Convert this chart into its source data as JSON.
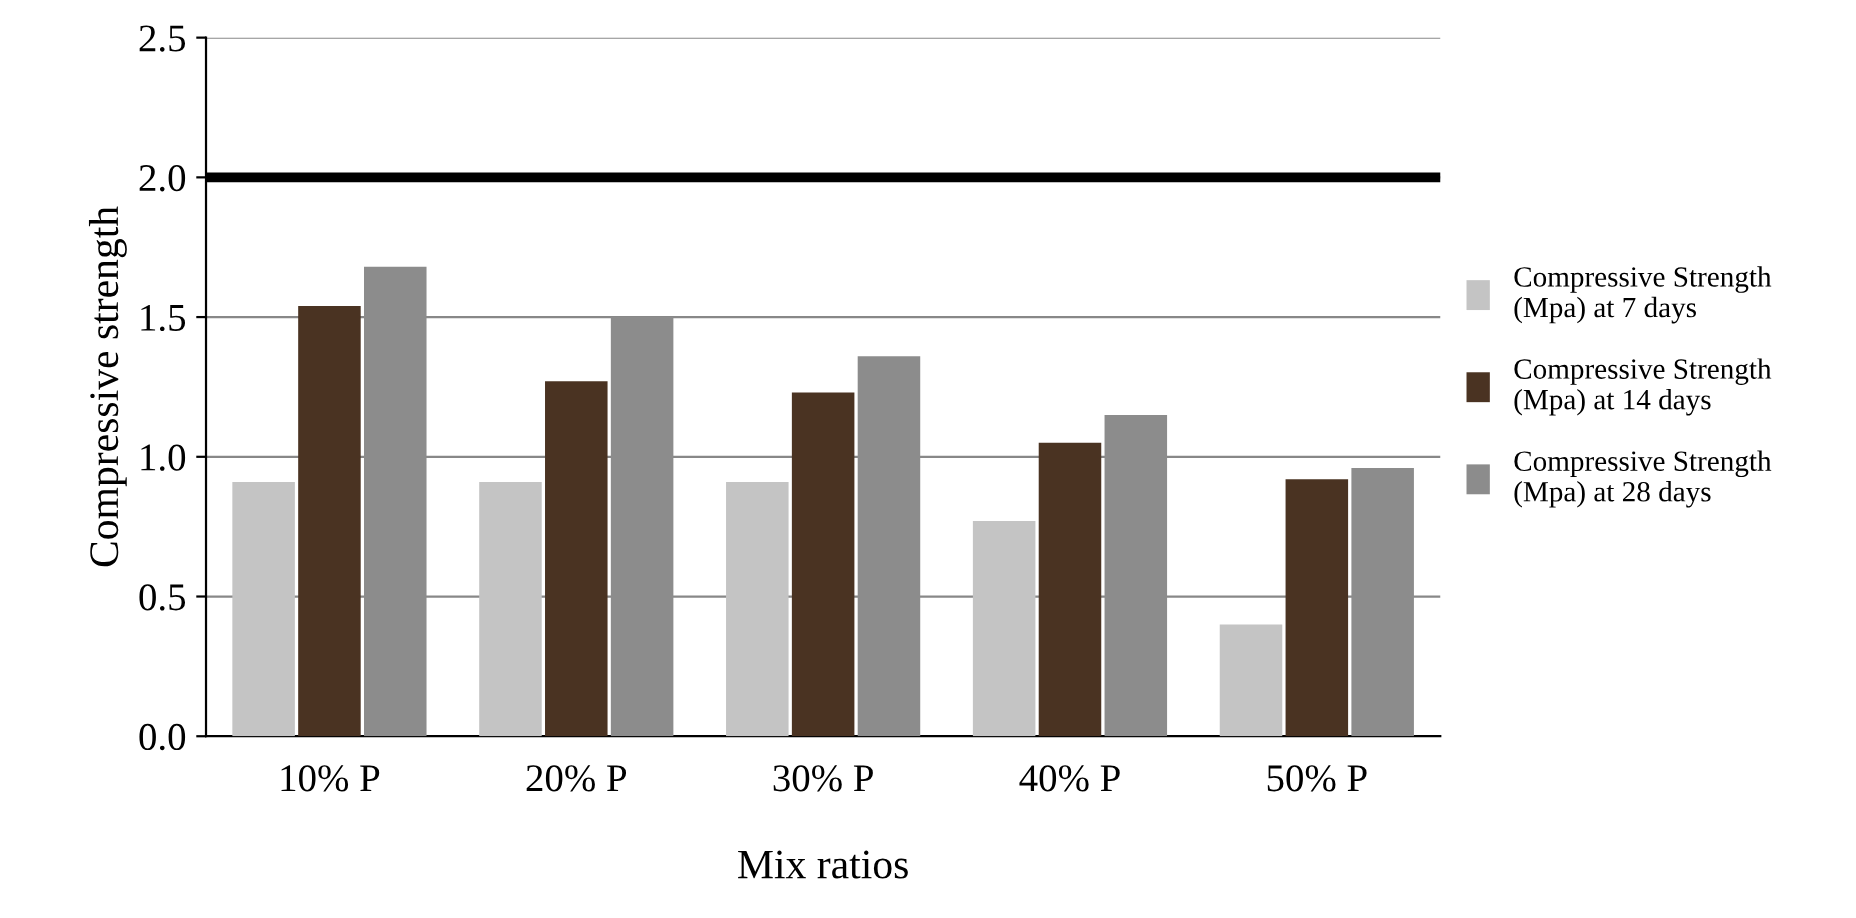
{
  "chart_data": {
    "type": "bar",
    "xlabel": "Mix ratios",
    "ylabel": "Compressive strength",
    "categories": [
      "10% P",
      "20% P",
      "30% P",
      "40% P",
      "50% P"
    ],
    "series": [
      {
        "name": "Compressive Strength\n(Mpa) at 7 days",
        "color": "#c4c4c4",
        "values": [
          0.91,
          0.91,
          0.91,
          0.77,
          0.4
        ]
      },
      {
        "name": "Compressive Strength\n(Mpa) at 14 days",
        "color": "#4a3322",
        "values": [
          1.54,
          1.27,
          1.23,
          1.05,
          0.92
        ]
      },
      {
        "name": "Compressive Strength\n(Mpa) at 28 days",
        "color": "#8c8c8c",
        "values": [
          1.68,
          1.5,
          1.36,
          1.15,
          0.96
        ]
      }
    ],
    "ylim": [
      0,
      2.5
    ],
    "yticks": [
      {
        "value": 0,
        "label": "0.0"
      },
      {
        "value": 0.5,
        "label": "0.5"
      },
      {
        "value": 1,
        "label": "1.0"
      },
      {
        "value": 1.5,
        "label": "1.5"
      },
      {
        "value": 2,
        "label": "2.0"
      },
      {
        "value": 2.5,
        "label": "2.5"
      }
    ],
    "grid": "y",
    "legend": "right",
    "ref_lines": [
      {
        "axis": "y",
        "value": 2.0,
        "color": "#000000"
      }
    ]
  }
}
